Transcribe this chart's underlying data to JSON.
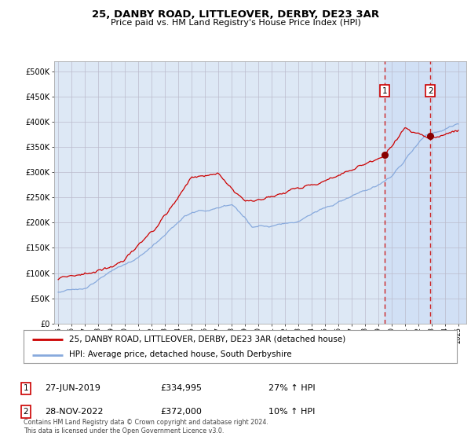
{
  "title": "25, DANBY ROAD, LITTLEOVER, DERBY, DE23 3AR",
  "subtitle": "Price paid vs. HM Land Registry's House Price Index (HPI)",
  "sale1_date": "27-JUN-2019",
  "sale1_price": 334995,
  "sale1_hpi": "27% ↑ HPI",
  "sale2_date": "28-NOV-2022",
  "sale2_price": 372000,
  "sale2_hpi": "10% ↑ HPI",
  "legend_line1": "25, DANBY ROAD, LITTLEOVER, DERBY, DE23 3AR (detached house)",
  "legend_line2": "HPI: Average price, detached house, South Derbyshire",
  "footer": "Contains HM Land Registry data © Crown copyright and database right 2024.\nThis data is licensed under the Open Government Licence v3.0.",
  "line_color_red": "#cc0000",
  "line_color_blue": "#88aadd",
  "plot_bg_color": "#dde8f5",
  "shade_color": "#ccddf5",
  "grid_color": "#bbbbcc",
  "sale_marker_color": "#880000",
  "dashed_line_color": "#cc2222",
  "box_edge_color": "#cc0000",
  "ylim_max": 520000,
  "sale1_x": 2019.46,
  "sale2_x": 2022.9
}
